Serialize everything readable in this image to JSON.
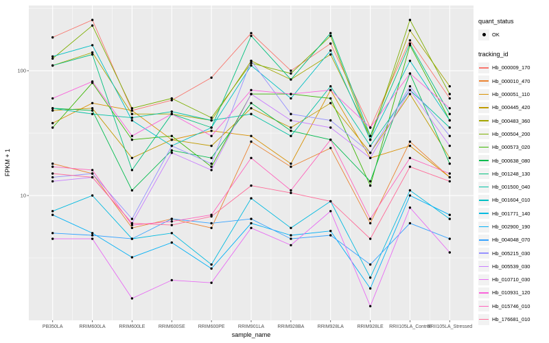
{
  "chart_data": {
    "type": "line",
    "title": "",
    "xlabel": "sample_name",
    "ylabel": "FPKM + 1",
    "y_scale": "log10",
    "y_ticks": [
      10,
      100
    ],
    "y_minor_ticks": [
      3.1623,
      31.623,
      316.23
    ],
    "ylim": [
      1.0,
      333
    ],
    "x_categories": [
      "PB350LA",
      "RRIM600LA",
      "RRIM600LE",
      "RRIM600SE",
      "RRIM600PE",
      "RRIM901LA",
      "RRIM928BA",
      "RRIM928LA",
      "RRIM928LE",
      "RRII105LA_Control",
      "RRII105LA_Stressed"
    ],
    "series": [
      {
        "name": "Hb_000009_170",
        "color": "#F8766D",
        "values": [
          185,
          255,
          48,
          58,
          88,
          200,
          100,
          165,
          35,
          175,
          60
        ]
      },
      {
        "name": "Hb_000010_470",
        "color": "#EA8331",
        "values": [
          18,
          15,
          5.5,
          6.5,
          5.5,
          27,
          17,
          24,
          6,
          27,
          14
        ]
      },
      {
        "name": "Hb_000051_110",
        "color": "#D89000",
        "values": [
          38,
          55,
          48,
          28,
          33,
          30,
          18,
          70,
          20,
          25,
          14
        ]
      },
      {
        "name": "Hb_000445_420",
        "color": "#C09B00",
        "values": [
          48,
          50,
          20,
          28,
          25,
          50,
          35,
          55,
          22,
          65,
          20
        ]
      },
      {
        "name": "Hb_000483_360",
        "color": "#A3A500",
        "values": [
          110,
          140,
          45,
          45,
          40,
          120,
          85,
          135,
          30,
          210,
          75
        ]
      },
      {
        "name": "Hb_000504_200",
        "color": "#7CAE00",
        "values": [
          125,
          230,
          50,
          60,
          42,
          115,
          95,
          190,
          28,
          255,
          65
        ]
      },
      {
        "name": "Hb_000573_020",
        "color": "#39B600",
        "values": [
          35,
          80,
          28,
          30,
          17,
          65,
          65,
          60,
          12,
          160,
          40
        ]
      },
      {
        "name": "Hb_000638_080",
        "color": "#00BB4E",
        "values": [
          50,
          48,
          11,
          23,
          20,
          55,
          33,
          28,
          13,
          95,
          18
        ]
      },
      {
        "name": "Hb_001248_130",
        "color": "#00BF7D",
        "values": [
          110,
          135,
          16,
          45,
          35,
          190,
          85,
          200,
          30,
          165,
          45
        ]
      },
      {
        "name": "Hb_001500_040",
        "color": "#00C1A3",
        "values": [
          50,
          45,
          42,
          47,
          40,
          45,
          30,
          75,
          25,
          70,
          35
        ]
      },
      {
        "name": "Hb_001604_010",
        "color": "#00BFC4",
        "values": [
          130,
          160,
          40,
          25,
          35,
          110,
          60,
          145,
          28,
          120,
          40
        ]
      },
      {
        "name": "Hb_001771_140",
        "color": "#00BAE0",
        "values": [
          7.5,
          10,
          4.5,
          5,
          2.8,
          9.5,
          5.5,
          9,
          2.2,
          11,
          6.5
        ]
      },
      {
        "name": "Hb_002900_190",
        "color": "#00B0F6",
        "values": [
          7,
          5,
          3.2,
          4.2,
          2.6,
          6,
          4.8,
          5.2,
          1.8,
          10,
          7
        ]
      },
      {
        "name": "Hb_004048_070",
        "color": "#35A2FF",
        "values": [
          5,
          4.8,
          4.5,
          6.5,
          6,
          6.5,
          4.5,
          4.8,
          2.8,
          6,
          4.5
        ]
      },
      {
        "name": "Hb_005215_030",
        "color": "#9590FF",
        "values": [
          14,
          15,
          6.5,
          25,
          18,
          120,
          45,
          40,
          22,
          75,
          30
        ]
      },
      {
        "name": "Hb_005539_030",
        "color": "#C77CFF",
        "values": [
          13,
          14,
          6,
          22,
          16,
          65,
          40,
          35,
          20,
          70,
          25
        ]
      },
      {
        "name": "Hb_010710_030",
        "color": "#E76BF3",
        "values": [
          4.5,
          4.5,
          1.5,
          2.1,
          2,
          5.5,
          4,
          7.5,
          1.3,
          8,
          3.5
        ]
      },
      {
        "name": "Hb_010931_120",
        "color": "#FA62DB",
        "values": [
          60,
          82,
          30,
          45,
          30,
          70,
          65,
          70,
          35,
          95,
          50
        ]
      },
      {
        "name": "Hb_015746_010",
        "color": "#FF62BC",
        "values": [
          17,
          16,
          5.8,
          6.2,
          7,
          20,
          11,
          28,
          6.5,
          20,
          15
        ]
      },
      {
        "name": "Hb_176681_010",
        "color": "#FF6A98",
        "values": [
          15,
          14,
          6,
          5.8,
          6.8,
          12,
          10.5,
          9,
          4.5,
          17,
          13
        ]
      }
    ],
    "legend_position": "right",
    "grid": true
  },
  "legend": {
    "quant_title": "quant_status",
    "quant_items": [
      {
        "label": "OK"
      }
    ],
    "series_title": "tracking_id"
  },
  "colors": {
    "panel_bg": "#EBEBEB",
    "grid_major": "#FFFFFF",
    "grid_minor": "#FFFFFF",
    "point": "#000000",
    "tick": "#333333",
    "tick_label": "#4D4D4D",
    "legend_key_bg": "#F2F2F2"
  }
}
